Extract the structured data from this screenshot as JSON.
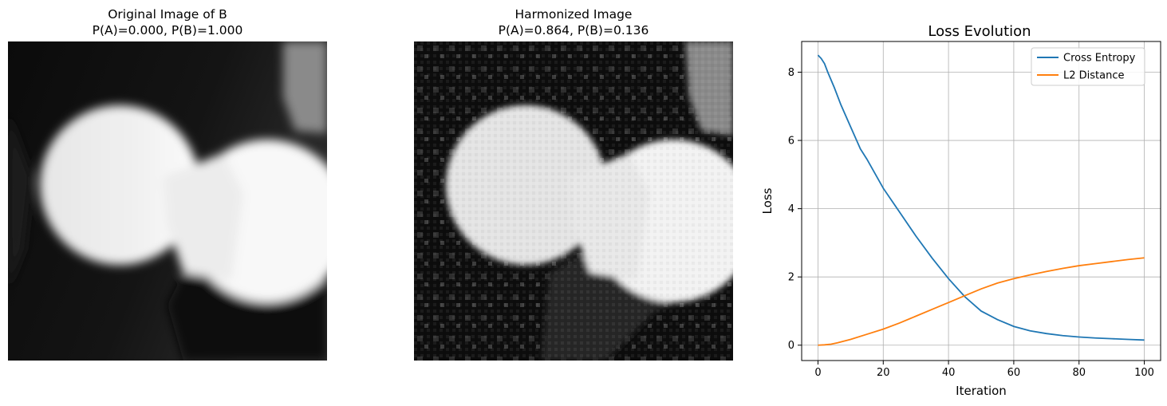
{
  "panels": [
    {
      "title_line1": "Original Image of B",
      "title_line2": "P(A)=0.000, P(B)=1.000"
    },
    {
      "title_line1": "Harmonized Image",
      "title_line2": "P(A)=0.864, P(B)=0.136"
    }
  ],
  "chart_data": {
    "type": "line",
    "title": "Loss Evolution",
    "xlabel": "Iteration",
    "ylabel": "Loss",
    "xlim": [
      -5,
      105
    ],
    "ylim": [
      -0.45,
      8.9
    ],
    "xticks": [
      0,
      20,
      40,
      60,
      80,
      100
    ],
    "yticks": [
      0,
      2,
      4,
      6,
      8
    ],
    "grid": true,
    "legend_position": "top-right",
    "series": [
      {
        "name": "Cross Entropy",
        "color": "#1f77b4",
        "x": [
          0,
          1,
          2,
          3,
          5,
          7,
          10,
          13,
          15,
          20,
          25,
          30,
          35,
          40,
          45,
          50,
          55,
          60,
          65,
          70,
          75,
          80,
          85,
          90,
          95,
          100
        ],
        "y": [
          8.5,
          8.4,
          8.25,
          8.0,
          7.55,
          7.05,
          6.4,
          5.75,
          5.45,
          4.6,
          3.9,
          3.2,
          2.55,
          1.95,
          1.42,
          1.0,
          0.75,
          0.55,
          0.42,
          0.34,
          0.28,
          0.24,
          0.21,
          0.19,
          0.17,
          0.15
        ]
      },
      {
        "name": "L2 Distance",
        "color": "#ff7f0e",
        "x": [
          0,
          2,
          4,
          6,
          10,
          15,
          20,
          25,
          30,
          35,
          40,
          45,
          50,
          55,
          60,
          65,
          70,
          75,
          80,
          85,
          90,
          95,
          100
        ],
        "y": [
          0.0,
          0.01,
          0.03,
          0.07,
          0.17,
          0.32,
          0.47,
          0.65,
          0.85,
          1.05,
          1.25,
          1.45,
          1.65,
          1.82,
          1.95,
          2.06,
          2.16,
          2.25,
          2.33,
          2.39,
          2.45,
          2.51,
          2.56
        ]
      }
    ]
  }
}
